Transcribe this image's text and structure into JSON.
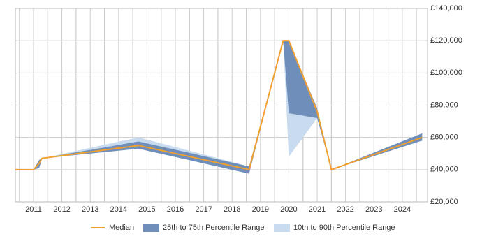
{
  "chart_data": {
    "type": "line",
    "x": [
      2010.36,
      2011.0,
      2011.2,
      2011.3,
      2014.7,
      2018.6,
      2019.8,
      2020.0,
      2021.0,
      2021.5,
      2024.7
    ],
    "series": [
      {
        "name": "10th to 90th Percentile Range",
        "color": "#c8dbef",
        "low": [
          40000,
          40000,
          41000,
          47000,
          53000,
          37500,
          120000,
          48000,
          72000,
          40000,
          58000
        ],
        "high": [
          40000,
          40000,
          46000,
          47000,
          60000,
          42000,
          120000,
          120000,
          78000,
          40000,
          62500
        ]
      },
      {
        "name": "25th to 75th Percentile Range",
        "color": "#6f8fba",
        "low": [
          40000,
          40000,
          41000,
          47000,
          53000,
          37500,
          120000,
          75000,
          72000,
          40000,
          58000
        ],
        "high": [
          40000,
          40000,
          46000,
          47000,
          57500,
          42000,
          120000,
          120000,
          78000,
          40000,
          62500
        ]
      },
      {
        "name": "Median",
        "color": "#f0a030",
        "values": [
          40000,
          40000,
          44000,
          47000,
          55000,
          40000,
          120000,
          120000,
          76000,
          40000,
          60000
        ]
      }
    ],
    "xlim": [
      2010.36,
      2024.89
    ],
    "xticks": [
      2011,
      2012,
      2013,
      2014,
      2015,
      2016,
      2017,
      2018,
      2019,
      2020,
      2021,
      2022,
      2023,
      2024
    ],
    "ylim": [
      20000,
      140000
    ],
    "yticks": [
      {
        "value": 20000,
        "label": "£20,000"
      },
      {
        "value": 40000,
        "label": "£40,000"
      },
      {
        "value": 60000,
        "label": "£60,000"
      },
      {
        "value": 80000,
        "label": "£80,000"
      },
      {
        "value": 100000,
        "label": "£100,000"
      },
      {
        "value": 120000,
        "label": "£120,000"
      },
      {
        "value": 140000,
        "label": "£140,000"
      }
    ],
    "grid": true
  }
}
